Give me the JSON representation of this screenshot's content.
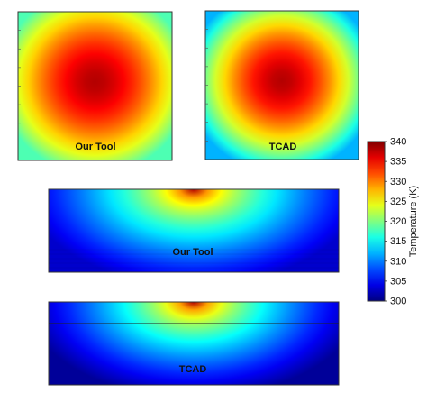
{
  "chart_data": {
    "type": "heatmap",
    "panels": [
      {
        "label": "Our Tool",
        "view": "top",
        "t_min": 318,
        "t_max": 338
      },
      {
        "label": "TCAD",
        "view": "top",
        "t_min": 312,
        "t_max": 338
      },
      {
        "label": "Our Tool",
        "view": "cross-section",
        "t_min": 303,
        "t_max": 338
      },
      {
        "label": "TCAD",
        "view": "cross-section",
        "t_min": 301,
        "t_max": 338
      }
    ],
    "colorbar": {
      "label": "Temperature (K)",
      "min": 300,
      "max": 340,
      "ticks": [
        300,
        305,
        310,
        315,
        320,
        325,
        330,
        335,
        340
      ],
      "colormap": "jet"
    }
  }
}
